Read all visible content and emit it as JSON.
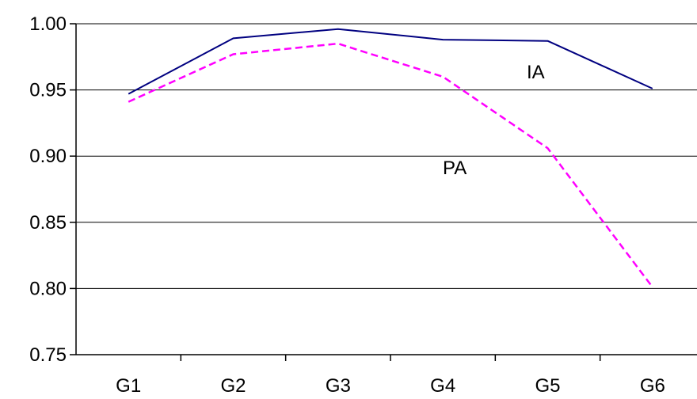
{
  "chart_data": {
    "type": "line",
    "categories": [
      "G1",
      "G2",
      "G3",
      "G4",
      "G5",
      "G6"
    ],
    "ylim": [
      0.75,
      1.0
    ],
    "yticks": [
      "0.75",
      "0.80",
      "0.85",
      "0.90",
      "0.95",
      "1.00"
    ],
    "grid": "horizontal",
    "legend": "none",
    "series": [
      {
        "name": "IA",
        "values": [
          0.947,
          0.989,
          0.996,
          0.988,
          0.987,
          0.951
        ],
        "color": "#000080",
        "style": "solid"
      },
      {
        "name": "PA",
        "values": [
          0.941,
          0.977,
          0.985,
          0.96,
          0.906,
          0.801
        ],
        "color": "#ff00ff",
        "style": "dashed"
      }
    ]
  }
}
